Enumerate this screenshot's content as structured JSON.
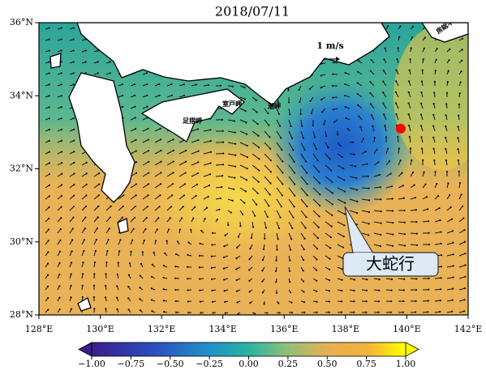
{
  "title": "2018/07/11",
  "map": {
    "xlim": [
      128,
      142
    ],
    "xticks": [
      {
        "value": 128,
        "label": "128°E"
      },
      {
        "value": 130,
        "label": "130°E"
      },
      {
        "value": 132,
        "label": "132°E"
      },
      {
        "value": 134,
        "label": "134°E"
      },
      {
        "value": 136,
        "label": "136°E"
      },
      {
        "value": 138,
        "label": "138°E"
      },
      {
        "value": 140,
        "label": "140°E"
      },
      {
        "value": 142,
        "label": "142°E"
      }
    ],
    "ylim": [
      28,
      36
    ],
    "yticks": [
      {
        "value": 28,
        "label": "28°N"
      },
      {
        "value": 30,
        "label": "30°N"
      },
      {
        "value": 32,
        "label": "32°N"
      },
      {
        "value": 34,
        "label": "34°N"
      },
      {
        "value": 36,
        "label": "36°N"
      }
    ],
    "marker": {
      "lon": 139.8,
      "lat": 33.1,
      "color": "#ff0000"
    }
  },
  "colorbar": {
    "lim": [
      -1,
      1
    ],
    "ticks": [
      {
        "value": -1,
        "label": "−1.00"
      },
      {
        "value": -0.75,
        "label": "−0.75"
      },
      {
        "value": -0.5,
        "label": "−0.50"
      },
      {
        "value": -0.25,
        "label": "−0.25"
      },
      {
        "value": 0,
        "label": "0.00"
      },
      0.25,
      {
        "value": 0.5,
        "label": "0.50"
      },
      0.75,
      {
        "value": 1,
        "label": "1.00"
      }
    ]
  },
  "scale_label": "1 m/s",
  "place_labels": [
    "足摺岬",
    "室戸岬",
    "潮岬",
    "房総半島"
  ],
  "annotation": "大蛇行"
}
